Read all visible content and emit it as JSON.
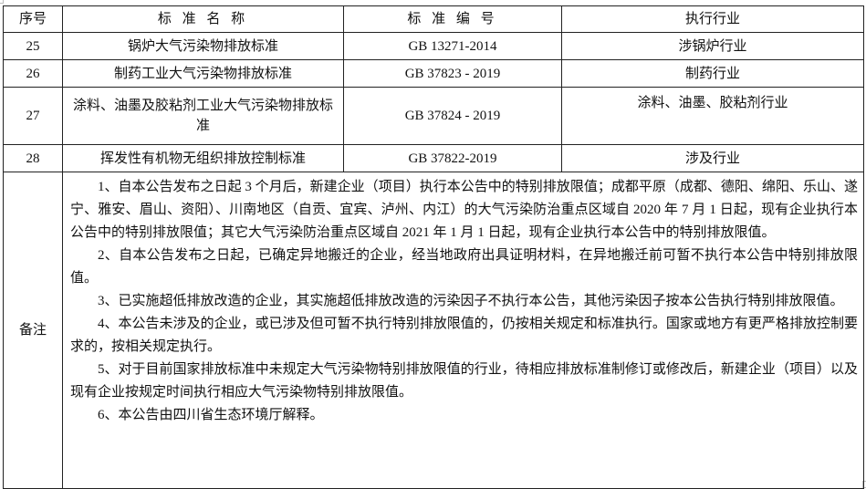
{
  "table": {
    "headers": [
      "序号",
      "标 准 名 称",
      "标 准 编 号",
      "执行行业"
    ],
    "rows": [
      {
        "no": "25",
        "name": "锅炉大气污染物排放标准",
        "code": "GB 13271-2014",
        "industry": "涉锅炉行业"
      },
      {
        "no": "26",
        "name": "制药工业大气污染物排放标准",
        "code": "GB 37823 - 2019",
        "industry": "制药行业"
      },
      {
        "no": "27",
        "name": "涂料、油墨及胶粘剂工业大气污染物排放标准",
        "code": "GB 37824 - 2019",
        "industry": "涂料、油墨、胶粘剂行业"
      },
      {
        "no": "28",
        "name": "挥发性有机物无组织排放控制标准",
        "code": "GB 37822-2019",
        "industry": "涉及行业"
      }
    ],
    "notes_label": "备注",
    "notes": [
      "1、自本公告发布之日起 3 个月后，新建企业（项目）执行本公告中的特别排放限值；成都平原（成都、德阳、绵阳、乐山、遂宁、雅安、眉山、资阳）、川南地区（自贡、宜宾、泸州、内江）的大气污染防治重点区域自 2020 年 7 月 1 日起，现有企业执行本公告中的特别排放限值；其它大气污染防治重点区域自 2021 年 1 月 1 日起，现有企业执行本公告中的特别排放限值。",
      "2、自本公告发布之日起，已确定异地搬迁的企业，经当地政府出具证明材料，在异地搬迁前可暂不执行本公告中特别排放限值。",
      "3、已实施超低排放改造的企业，其实施超低排放改造的污染因子不执行本公告，其他污染因子按本公告执行特别排放限值。",
      "4、本公告未涉及的企业，或已涉及但可暂不执行特别排放限值的，仍按相关规定和标准执行。国家或地方有更严格排放控制要求的，按相关规定执行。",
      "5、对于目前国家排放标准中未规定大气污染物特别排放限值的行业，待相应排放标准制修订或修改后，新建企业（项目）以及现有企业按规定时间执行相应大气污染物特别排放限值。",
      "6、本公告由四川省生态环境厅解释。"
    ]
  }
}
